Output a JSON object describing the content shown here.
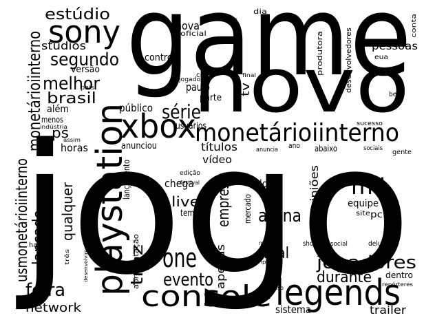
{
  "words": [
    "game",
    "jogo",
    "novo",
    "sony",
    "estúdio",
    "segundo",
    "melhor",
    "brasil",
    "studios",
    "versão",
    "monetárioiinterno",
    "além",
    "menos",
    "indústria",
    "país",
    "ps",
    "horas",
    "assim",
    "usmonetárioiinterno",
    "lançado",
    "qualquer",
    "playstation",
    "xbox",
    "monetárioiinterno",
    "série",
    "público",
    "paulo",
    "parte",
    "tv",
    "usuários",
    "controle",
    "nova",
    "oficial",
    "ds",
    "dia",
    "criar",
    "jogador",
    "final",
    "produtora",
    "desenvolvedores",
    "conta",
    "pessoas",
    "eua",
    "bem",
    "sucesso",
    "anunciou",
    "títulos",
    "vídeo",
    "edição",
    "festival",
    "lançamento",
    "chega",
    "live",
    "tempo",
    "empresa",
    "mercado",
    "dois",
    "anuncia",
    "ano",
    "abaixo",
    "sociais",
    "gente",
    "opiniões",
    "mil",
    "equipe",
    "arena",
    "site",
    "pc",
    "show",
    "sonic",
    "social",
    "deluxe",
    "one",
    "evento",
    "traz",
    "apresentação",
    "apenas",
    "real",
    "ript",
    "maior",
    "jogadores",
    "dentro",
    "repórteres",
    "durante",
    "console",
    "legends",
    "feira",
    "network",
    "sistema",
    "trailer",
    "uso",
    "halo",
    "três",
    "desenvolvimento"
  ]
}
